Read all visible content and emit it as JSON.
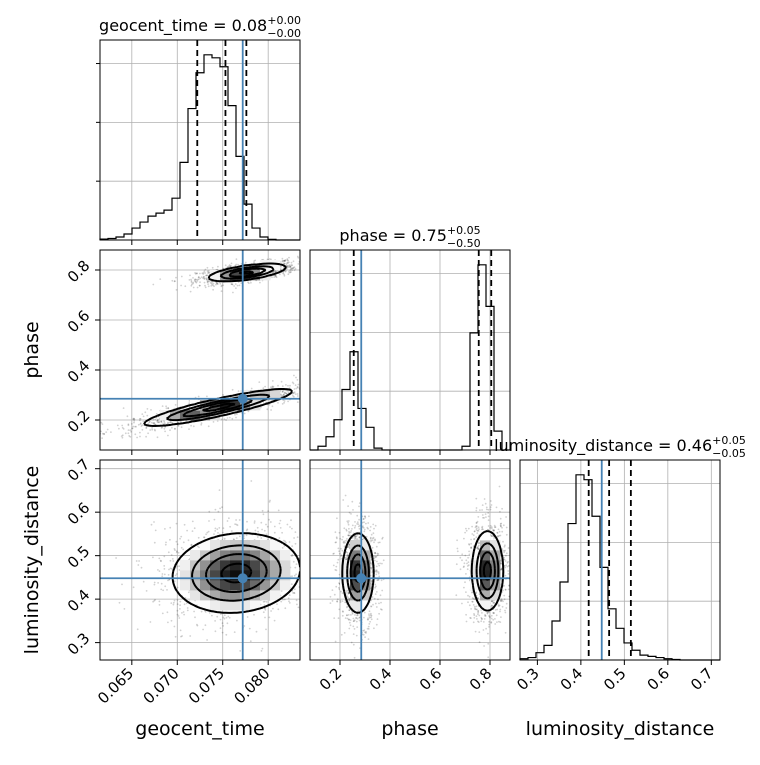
{
  "colors": {
    "truth": "#4682b4",
    "hist": "#000000",
    "grid": "#b0b0b0"
  },
  "chart_data": {
    "type": "corner",
    "parameters": [
      {
        "name": "geocent_time",
        "label": "geocent_time",
        "title_main": "geocent_time = 0.08",
        "title_sup": "+0.00",
        "title_sub": "−0.00",
        "range": [
          0.0615,
          0.0835
        ],
        "ticks": [
          0.065,
          0.07,
          0.075,
          0.08
        ],
        "tick_labels": [
          "0.065",
          "0.070",
          "0.075",
          "0.080"
        ],
        "truth": 0.0772,
        "quantiles": [
          0.0722,
          0.0753,
          0.0776
        ],
        "hist": {
          "start": 0.0615,
          "width": 0.00088,
          "counts": [
            0.3,
            0.5,
            1,
            2,
            4,
            6,
            8,
            9,
            10,
            14,
            26,
            44,
            56,
            62,
            61,
            58,
            45,
            28,
            12,
            4,
            1,
            0.2,
            0,
            0,
            0
          ]
        }
      },
      {
        "name": "phase",
        "label": "phase",
        "title_main": "phase = 0.75",
        "title_sup": "+0.05",
        "title_sub": "−0.50",
        "range": [
          0.08,
          0.88
        ],
        "ticks": [
          0.2,
          0.4,
          0.6,
          0.8
        ],
        "tick_labels": [
          "0.2",
          "0.4",
          "0.6",
          "0.8"
        ],
        "truth": 0.285,
        "quantiles": [
          0.255,
          0.755,
          0.805
        ],
        "hist": {
          "start": 0.08,
          "width": 0.032,
          "counts": [
            0,
            2,
            7,
            16,
            32,
            52,
            22,
            12,
            1,
            0,
            0,
            0,
            0,
            0,
            0,
            0,
            0,
            0,
            0,
            2,
            62,
            98,
            76,
            10,
            0
          ]
        }
      },
      {
        "name": "luminosity_distance",
        "label": "luminosity_distance",
        "title_main": "luminosity_distance = 0.46",
        "title_sup": "+0.05",
        "title_sub": "−0.05",
        "range": [
          0.26,
          0.72
        ],
        "ticks": [
          0.3,
          0.4,
          0.5,
          0.6,
          0.7
        ],
        "tick_labels": [
          "0.3",
          "0.4",
          "0.5",
          "0.6",
          "0.7"
        ],
        "truth": 0.448,
        "quantiles": [
          0.418,
          0.465,
          0.515
        ],
        "hist": {
          "start": 0.26,
          "width": 0.0184,
          "counts": [
            0.5,
            1,
            3,
            6,
            16,
            32,
            56,
            76,
            74,
            59,
            38,
            21,
            13,
            7,
            4,
            2,
            1.5,
            1,
            0.5,
            0.2,
            0,
            0,
            0,
            0,
            0
          ]
        }
      }
    ],
    "pairs": [
      {
        "x": "geocent_time",
        "y": "phase",
        "blobs": [
          {
            "cx": 0.0777,
            "cy": 0.79,
            "sx": 0.0022,
            "sy": 0.018,
            "rho": 0.6,
            "weight": 1.0
          },
          {
            "cx": 0.0745,
            "cy": 0.25,
            "sx": 0.0042,
            "sy": 0.038,
            "rho": 0.88,
            "weight": 1.0
          }
        ],
        "contour_levels": [
          0.9,
          0.65,
          0.4,
          0.15
        ]
      },
      {
        "x": "geocent_time",
        "y": "luminosity_distance",
        "blobs": [
          {
            "cx": 0.0765,
            "cy": 0.46,
            "sx": 0.0036,
            "sy": 0.047,
            "rho": 0.1,
            "weight": 1.0
          }
        ],
        "contour_levels": [
          0.9,
          0.65,
          0.4,
          0.15
        ]
      },
      {
        "x": "phase",
        "y": "luminosity_distance",
        "blobs": [
          {
            "cx": 0.272,
            "cy": 0.46,
            "sx": 0.032,
            "sy": 0.047,
            "rho": 0.0,
            "weight": 1.0
          },
          {
            "cx": 0.79,
            "cy": 0.465,
            "sx": 0.032,
            "sy": 0.047,
            "rho": 0.0,
            "weight": 1.0
          }
        ],
        "contour_levels": [
          0.9,
          0.65,
          0.4,
          0.15
        ]
      }
    ]
  }
}
